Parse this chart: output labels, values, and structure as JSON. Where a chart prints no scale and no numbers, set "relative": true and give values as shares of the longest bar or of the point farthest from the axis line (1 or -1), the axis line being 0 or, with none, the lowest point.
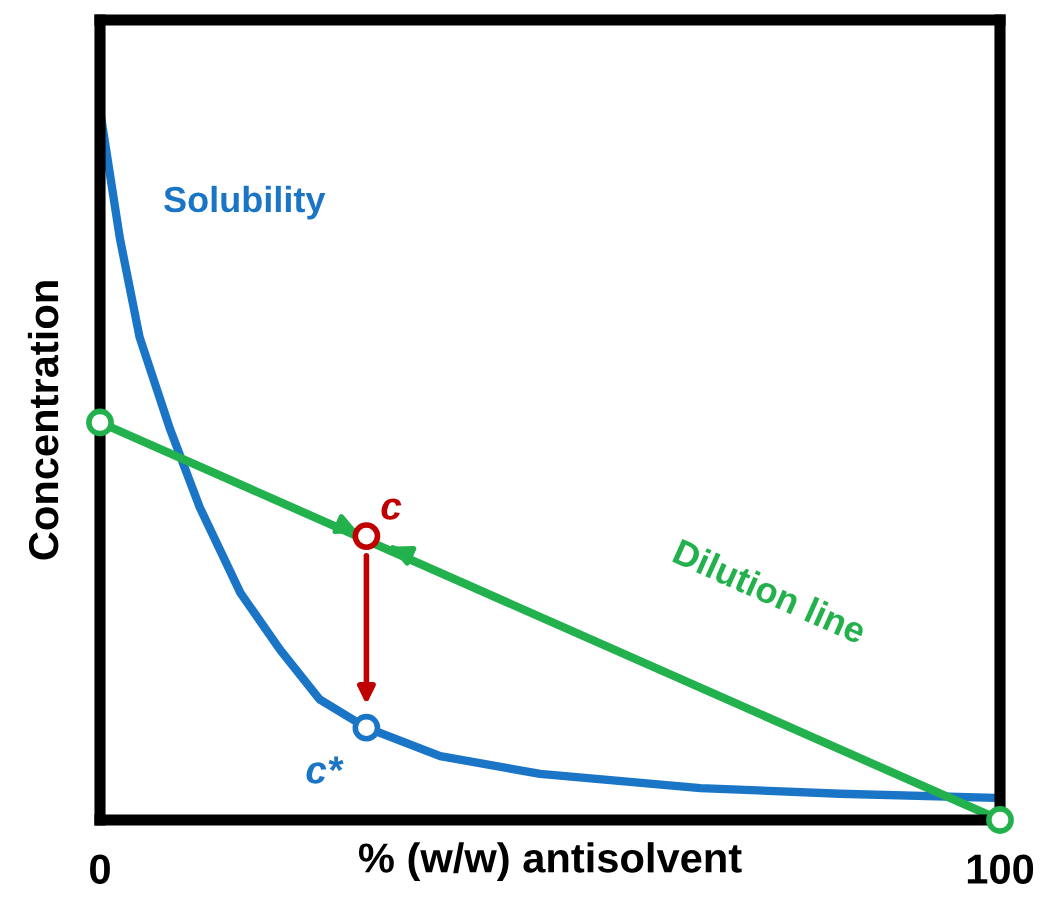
{
  "chart_data": {
    "type": "line",
    "relative": true,
    "xlabel": "% (w/w) antisolvent",
    "ylabel": "Concentration",
    "xlim": [
      0,
      100
    ],
    "xticks": [
      0,
      100
    ],
    "series": [
      {
        "name": "Solubility",
        "color": "#1b75c6",
        "marker": "none",
        "x": [
          0,
          2.2,
          4.4,
          7.8,
          11.1,
          15.6,
          20,
          24.4,
          29.6,
          37.8,
          48.9,
          66.7,
          82.2,
          100
        ],
        "values": [
          1.0,
          0.82,
          0.68,
          0.55,
          0.44,
          0.32,
          0.24,
          0.17,
          0.13,
          0.09,
          0.065,
          0.045,
          0.037,
          0.031
        ]
      },
      {
        "name": "Dilution line",
        "color": "#22b14c",
        "marker": "circle",
        "x": [
          0,
          100
        ],
        "values": [
          0.56,
          0
        ]
      },
      {
        "type": "scatter",
        "color": "#c00000",
        "marker": "circle",
        "x": [
          29.6
        ],
        "values": [
          0.4
        ]
      },
      {
        "type": "scatter",
        "color": "#1b75c6",
        "marker": "circle",
        "x": [
          29.6
        ],
        "values": [
          0.13
        ]
      }
    ],
    "annotations": [
      {
        "text": "c",
        "x": 29.6,
        "y": 0.4
      },
      {
        "text": "c*",
        "x": 29.6,
        "y": 0.13
      }
    ]
  }
}
